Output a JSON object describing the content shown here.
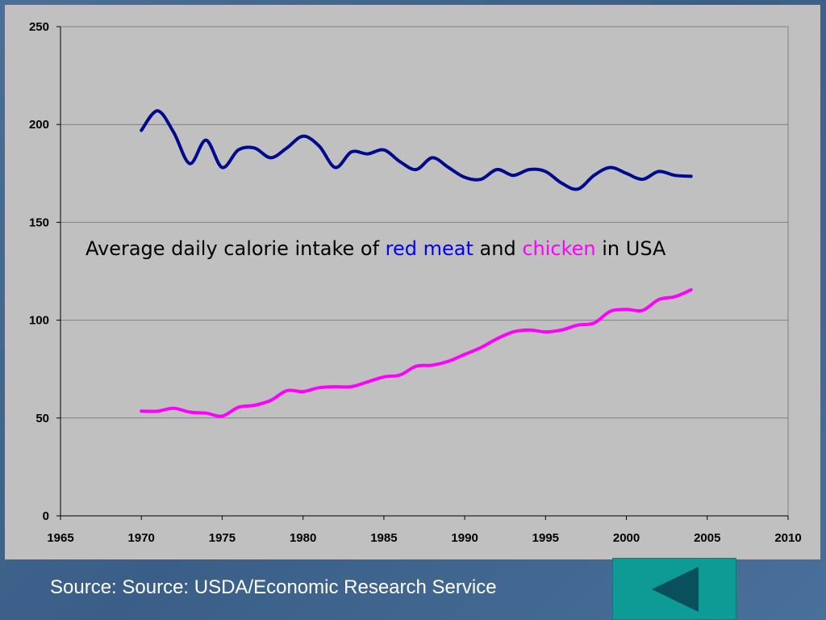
{
  "colors": {
    "red_meat": "#000a8c",
    "chicken": "#ff00ff",
    "annotation_red_meat": "#0000ff",
    "annotation_chicken": "#ff00ff",
    "plot_background": "#c0c0c0",
    "button": "#0f9b95"
  },
  "annotation": {
    "prefix": "Average daily calorie intake of ",
    "red_meat": "red meat",
    "and": " and ",
    "chicken": "chicken",
    "suffix": " in USA"
  },
  "source": "Source: Source: USDA/Economic Research Service",
  "back_button": {
    "icon": "back-arrow-icon"
  },
  "chart_data": {
    "type": "line",
    "title": "",
    "xlabel": "",
    "ylabel": "",
    "xlim": [
      1965,
      2010
    ],
    "ylim": [
      0,
      250
    ],
    "x_ticks": [
      1965,
      1970,
      1975,
      1980,
      1985,
      1990,
      1995,
      2000,
      2005,
      2010
    ],
    "y_ticks": [
      0,
      50,
      100,
      150,
      200,
      250
    ],
    "grid": "horizontal",
    "legend": "none",
    "x": [
      1970,
      1971,
      1972,
      1973,
      1974,
      1975,
      1976,
      1977,
      1978,
      1979,
      1980,
      1981,
      1982,
      1983,
      1984,
      1985,
      1986,
      1987,
      1988,
      1989,
      1990,
      1991,
      1992,
      1993,
      1994,
      1995,
      1996,
      1997,
      1998,
      1999,
      2000,
      2001,
      2002,
      2003,
      2004
    ],
    "series": [
      {
        "key": "red_meat",
        "values": [
          197,
          207,
          196,
          180,
          192,
          178,
          187,
          188,
          183,
          188,
          194,
          189,
          178,
          186,
          185,
          187,
          181,
          177,
          183,
          178,
          173,
          172,
          177,
          174,
          177,
          176,
          170,
          167,
          174,
          178,
          175,
          172,
          176,
          174,
          173.5
        ]
      },
      {
        "key": "chicken",
        "values": [
          53.5,
          53.5,
          55,
          53,
          52.5,
          51,
          55.5,
          56.5,
          59,
          64,
          63.5,
          65.5,
          66,
          66,
          68.5,
          71,
          72,
          76.5,
          77,
          79,
          82.5,
          86,
          90.5,
          94,
          95,
          94,
          95,
          97.5,
          98.5,
          104.5,
          105.5,
          105,
          110.5,
          112,
          115.5
        ]
      }
    ]
  }
}
